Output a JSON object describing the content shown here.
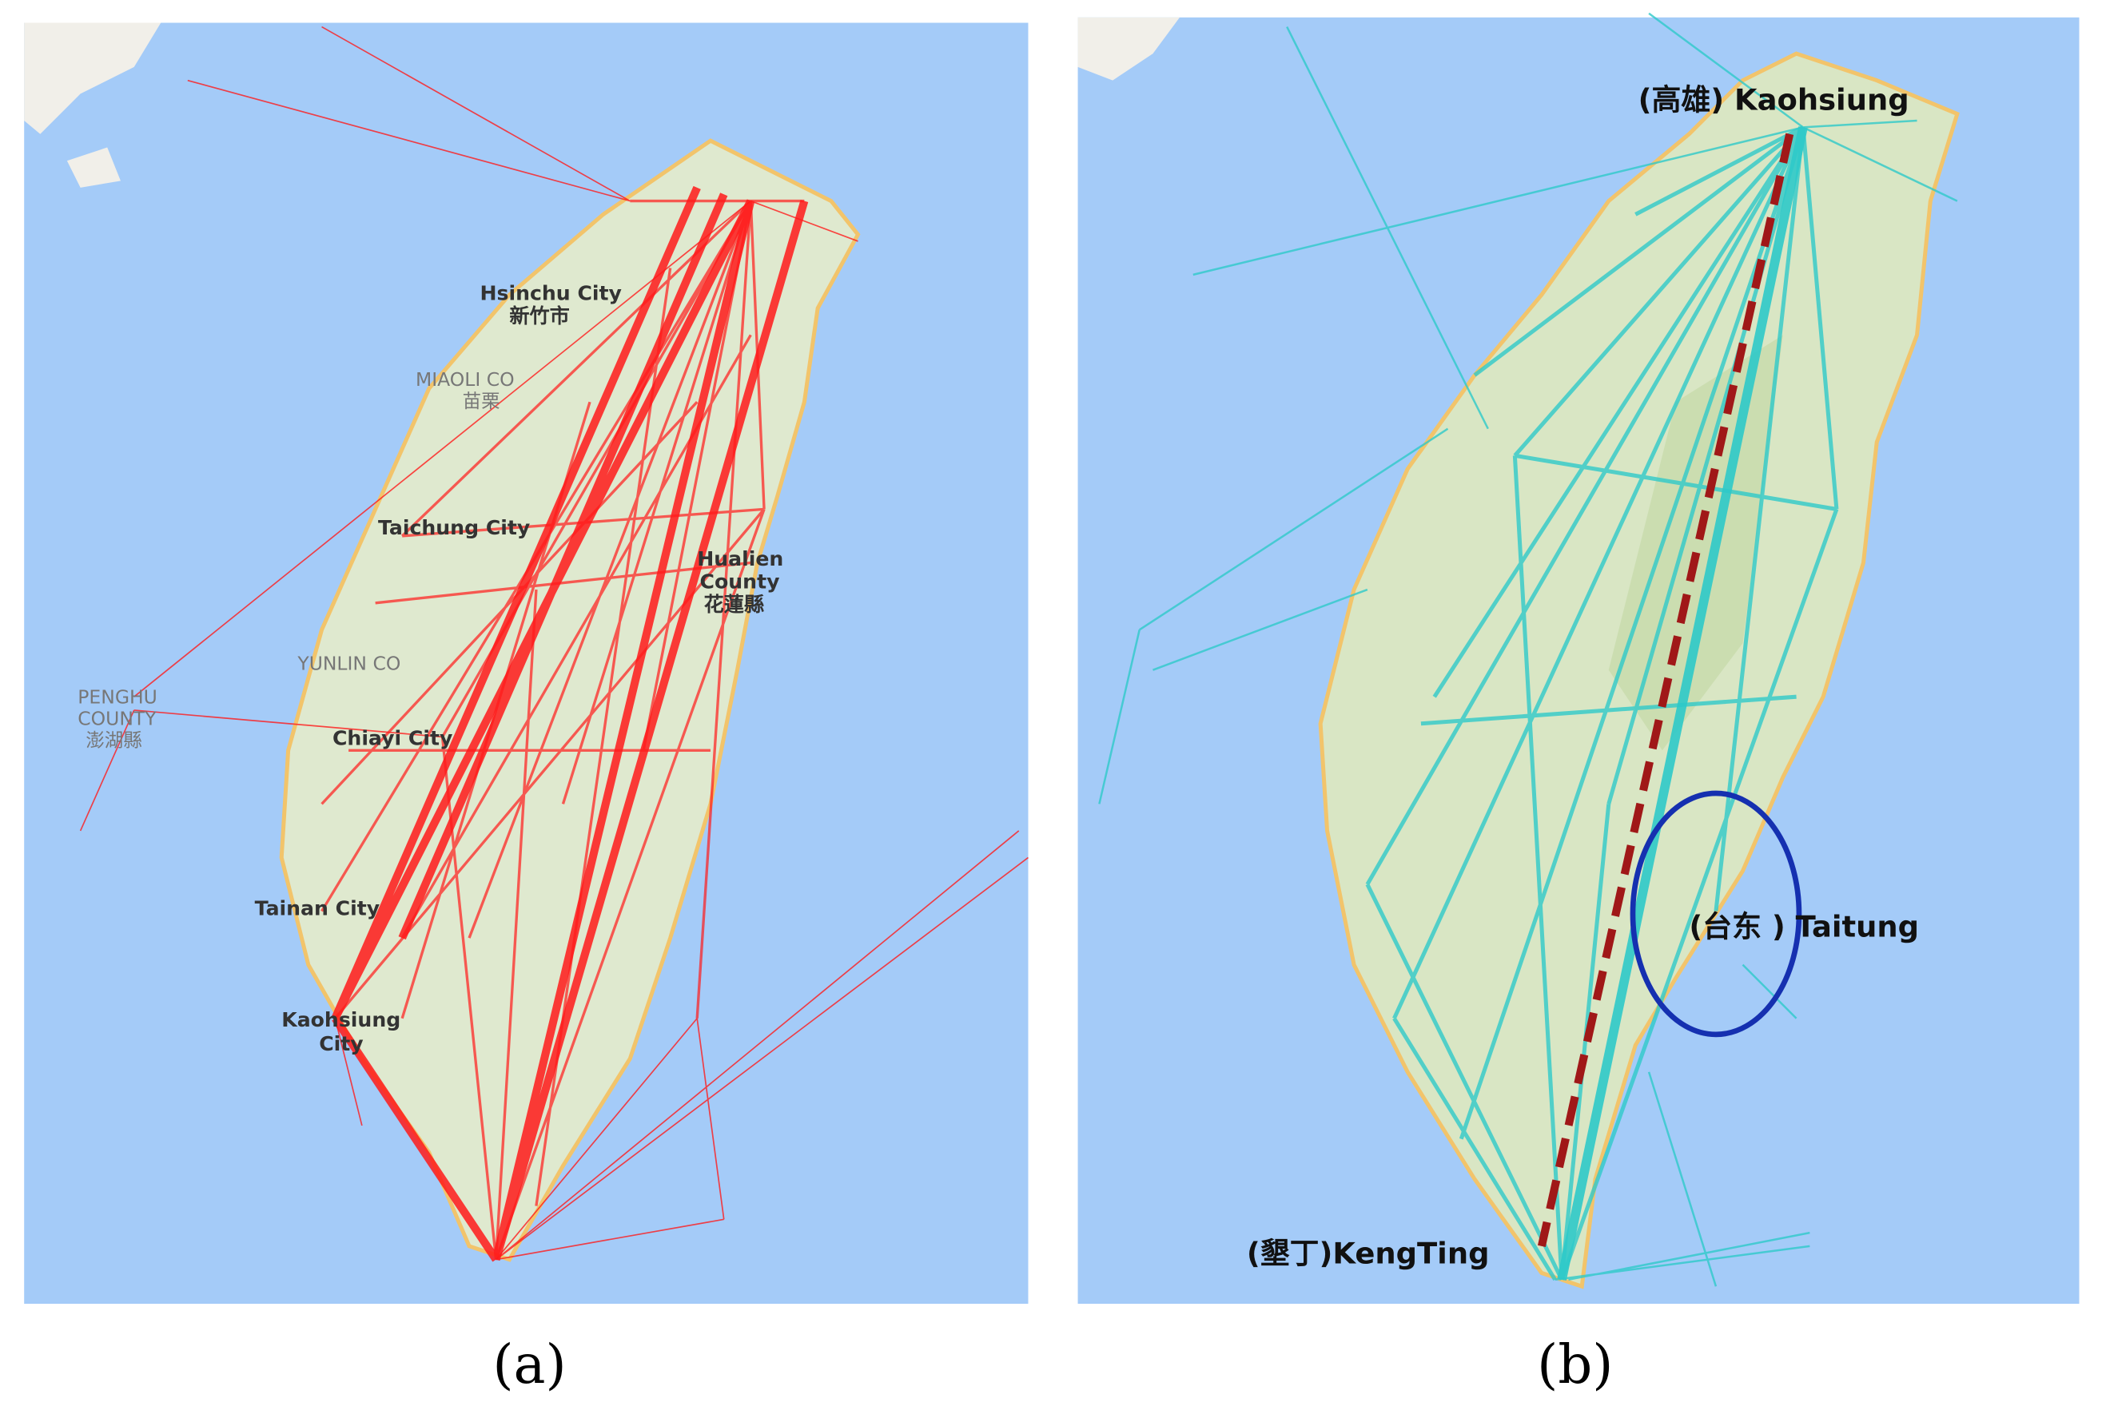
{
  "panel_a": {
    "caption": "(a)",
    "labels": [
      "Hsinchu City",
      "新竹市",
      "MIAOLI CO",
      "苗栗",
      "Taichung City",
      "Hualien",
      "County",
      "花蓮縣",
      "PENGHU",
      "COUNTY",
      "澎湖縣",
      "YUNLIN CO",
      "Chiayi City",
      "Tainan City",
      "Kaohsiung",
      "City"
    ]
  },
  "panel_b": {
    "caption": "(b)",
    "annotations": [
      "(高雄) Kaohsiung",
      "(台东 ) Taitung",
      "(墾丁)KengTing"
    ]
  }
}
